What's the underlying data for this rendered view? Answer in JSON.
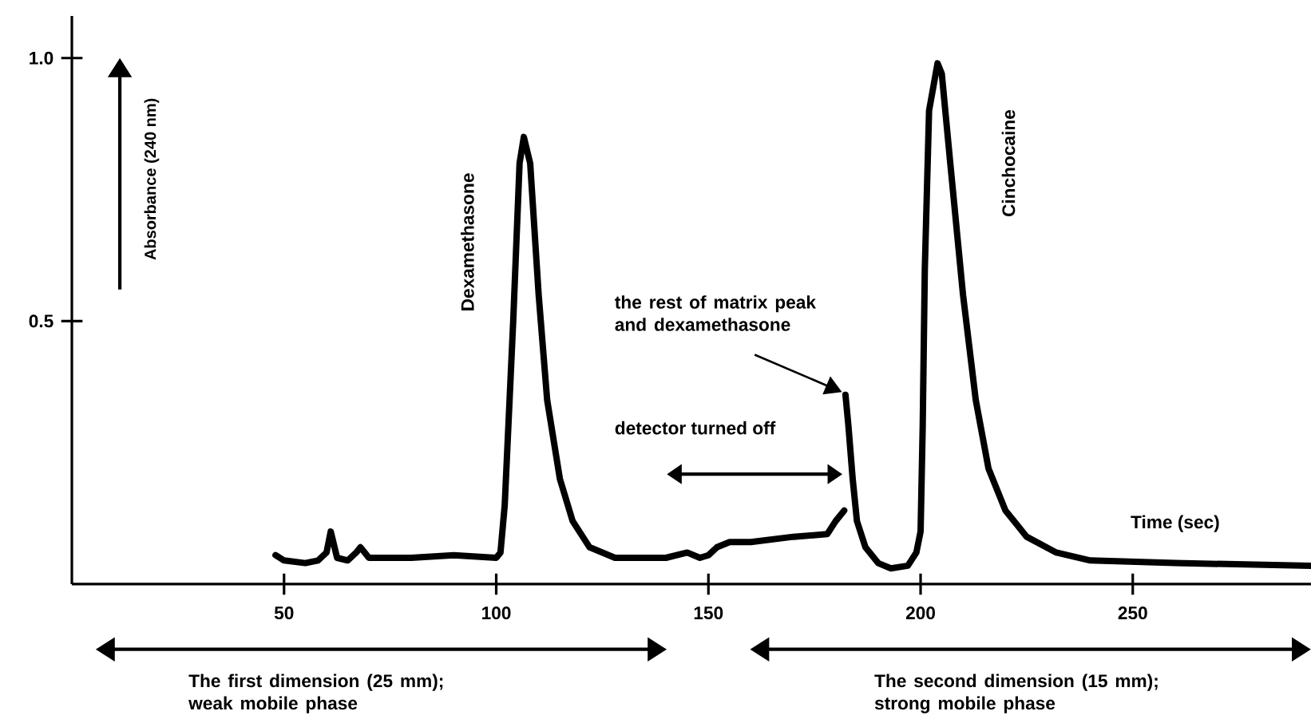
{
  "chart_data": {
    "type": "line",
    "xlabel": "Time (sec)",
    "ylabel": "Absorbance (240 nm)",
    "xlim": [
      0,
      292
    ],
    "ylim": [
      0,
      1.08
    ],
    "xticks": [
      50,
      100,
      150,
      200,
      250
    ],
    "yticks": [
      0.5,
      {
        "value": 1.0,
        "label": "1.0"
      }
    ],
    "marker": "none",
    "line_style": "solid",
    "series": [
      {
        "color": "#000000",
        "x": [
          48,
          50,
          55,
          58,
          60,
          61,
          62.5,
          65,
          67,
          68,
          70,
          80,
          90,
          100,
          101,
          102,
          104,
          105.5,
          106.5,
          108,
          110,
          112,
          115,
          118,
          122,
          128,
          140,
          145,
          148,
          150,
          152,
          155,
          160,
          170,
          178,
          180,
          182,
          182.2,
          182.3,
          183,
          184,
          185,
          187,
          190,
          193,
          197,
          199,
          200,
          200.5,
          201,
          202,
          204,
          205,
          207,
          210,
          213,
          216,
          220,
          225,
          232,
          240,
          260,
          292
        ],
        "values": [
          0.055,
          0.045,
          0.04,
          0.045,
          0.06,
          0.1,
          0.05,
          0.045,
          0.06,
          0.07,
          0.05,
          0.05,
          0.055,
          0.05,
          0.06,
          0.15,
          0.5,
          0.8,
          0.85,
          0.8,
          0.55,
          0.35,
          0.2,
          0.12,
          0.07,
          0.05,
          0.05,
          0.06,
          0.05,
          0.055,
          0.07,
          0.08,
          0.08,
          0.09,
          0.095,
          0.12,
          0.14,
          null,
          0.36,
          0.3,
          0.2,
          0.12,
          0.07,
          0.04,
          0.03,
          0.035,
          0.06,
          0.1,
          0.3,
          0.6,
          0.9,
          0.99,
          0.97,
          0.8,
          0.55,
          0.35,
          0.22,
          0.14,
          0.09,
          0.06,
          0.045,
          0.04,
          0.035
        ]
      }
    ],
    "annotations": [
      "Dexamethasone",
      "Cinchocaine",
      "the rest of matrix peak and dexamethasone",
      "detector turned off",
      "The first dimension (25 mm); weak mobile phase",
      "The second dimension (15 mm); strong mobile phase"
    ]
  }
}
